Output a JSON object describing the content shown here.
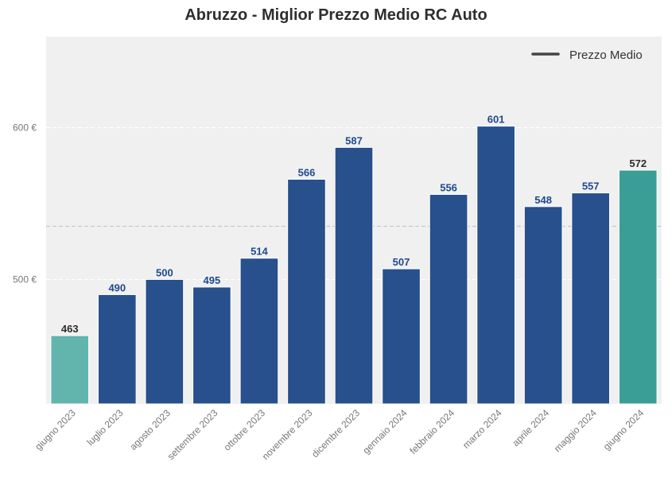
{
  "chart_data": {
    "type": "bar",
    "title": "Abruzzo - Miglior Prezzo Medio RC Auto",
    "categories": [
      "giugno 2023",
      "luglio 2023",
      "agosto 2023",
      "settembre 2023",
      "ottobre 2023",
      "novembre 2023",
      "dicembre 2023",
      "gennaio 2024",
      "febbraio 2024",
      "marzo 2024",
      "aprile 2024",
      "maggio 2024",
      "giugno 2024"
    ],
    "values": [
      463,
      490,
      500,
      495,
      514,
      566,
      587,
      507,
      556,
      601,
      548,
      557,
      572
    ],
    "value_labels": [
      "463",
      "490",
      "500",
      "495",
      "514",
      "566",
      "587",
      "507",
      "556",
      "601",
      "548",
      "557",
      "572"
    ],
    "bar_colors": [
      "#62b5ad",
      "#27508c",
      "#27508c",
      "#27508c",
      "#27508c",
      "#27508c",
      "#27508c",
      "#27508c",
      "#27508c",
      "#27508c",
      "#27508c",
      "#27508c",
      "#3a9e96"
    ],
    "label_colors": [
      "#2b2b2b",
      "#1e4a8c",
      "#1e4a8c",
      "#1e4a8c",
      "#1e4a8c",
      "#1e4a8c",
      "#1e4a8c",
      "#1e4a8c",
      "#1e4a8c",
      "#1e4a8c",
      "#1e4a8c",
      "#1e4a8c",
      "#2b2b2b"
    ],
    "ylim": [
      418,
      660
    ],
    "yticks": [
      500,
      600
    ],
    "ytick_labels": [
      "500 €",
      "600 €"
    ],
    "average_line": 535,
    "legend": {
      "entries": [
        "Prezzo Medio"
      ],
      "placement": "top-right"
    },
    "grid": true,
    "background_color": "#f0f0f0"
  }
}
